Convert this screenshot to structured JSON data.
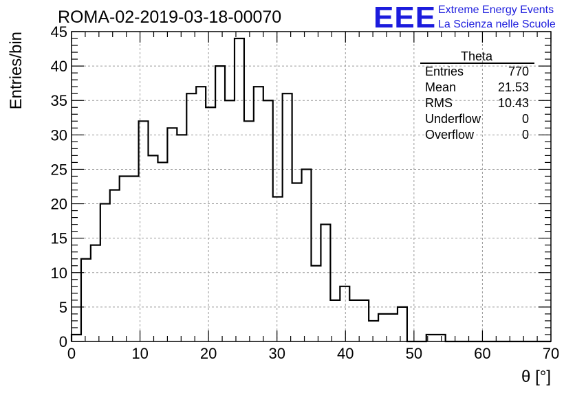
{
  "colors": {
    "brand": "#1c1cdd",
    "line": "#000000",
    "grid": "#9a9a9a",
    "background": "#ffffff"
  },
  "branding": {
    "logo": "EEE",
    "line1": "Extreme Energy Events",
    "line2": "La Scienza nelle Scuole"
  },
  "stats": {
    "title": "Theta",
    "rows": [
      {
        "label": "Entries",
        "value": "770"
      },
      {
        "label": "Mean",
        "value": "21.53"
      },
      {
        "label": "RMS",
        "value": "10.43"
      },
      {
        "label": "Underflow",
        "value": "0"
      },
      {
        "label": "Overflow",
        "value": "0"
      }
    ]
  },
  "chart_data": {
    "type": "histogram",
    "title": "ROMA-02-2019-03-18-00070",
    "xlabel": "θ [°]",
    "ylabel": "Entries/bin",
    "xlim": [
      0,
      70
    ],
    "ylim": [
      0,
      45
    ],
    "grid": true,
    "x_ticks": [
      0,
      10,
      20,
      30,
      40,
      50,
      60,
      70
    ],
    "y_ticks": [
      0,
      5,
      10,
      15,
      20,
      25,
      30,
      35,
      40,
      45
    ],
    "bin_width": 1.4,
    "bin_start": 0,
    "values": [
      1,
      12,
      14,
      20,
      22,
      24,
      24,
      32,
      27,
      26,
      31,
      30,
      36,
      37,
      34,
      40,
      35,
      44,
      32,
      37,
      35,
      21,
      36,
      23,
      25,
      11,
      17,
      6,
      8,
      6,
      6,
      3,
      4,
      4,
      5,
      0,
      0,
      1,
      1,
      0,
      0,
      0,
      0,
      0,
      0,
      0,
      0,
      0,
      0,
      0
    ]
  }
}
